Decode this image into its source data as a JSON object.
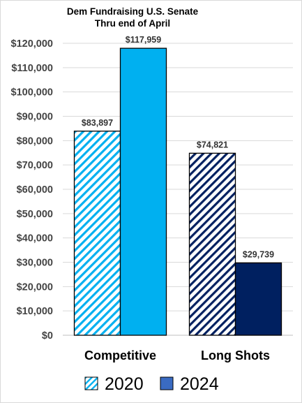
{
  "chart_data": {
    "type": "bar",
    "title": "Dem Fundraising U.S. Senate",
    "subtitle": "Thru end of April",
    "categories": [
      "Competitive",
      "Long Shots"
    ],
    "series": [
      {
        "name": "2020",
        "values": [
          83897,
          74821
        ],
        "labels": [
          "$83,897",
          "$74,821"
        ],
        "pattern": "diagonal-hatch",
        "colors": [
          "#00b0f0",
          "#002060"
        ]
      },
      {
        "name": "2024",
        "values": [
          117959,
          29739
        ],
        "labels": [
          "$117,959",
          "$29,739"
        ],
        "pattern": "solid",
        "colors": [
          "#00b0f0",
          "#002060"
        ]
      }
    ],
    "ylim": [
      0,
      120000
    ],
    "yticks": [
      0,
      10000,
      20000,
      30000,
      40000,
      50000,
      60000,
      70000,
      80000,
      90000,
      100000,
      110000,
      120000
    ],
    "ytick_labels": [
      "$0",
      "$10,000",
      "$20,000",
      "$30,000",
      "$40,000",
      "$50,000",
      "$60,000",
      "$70,000",
      "$80,000",
      "$90,000",
      "$100,000",
      "$110,000",
      "$120,000"
    ],
    "grid": true,
    "legend": {
      "placement": "bottom",
      "entries": [
        "2020",
        "2024"
      ],
      "swatch_colors": [
        "#00b0f0",
        "#3a6bc2"
      ]
    }
  }
}
